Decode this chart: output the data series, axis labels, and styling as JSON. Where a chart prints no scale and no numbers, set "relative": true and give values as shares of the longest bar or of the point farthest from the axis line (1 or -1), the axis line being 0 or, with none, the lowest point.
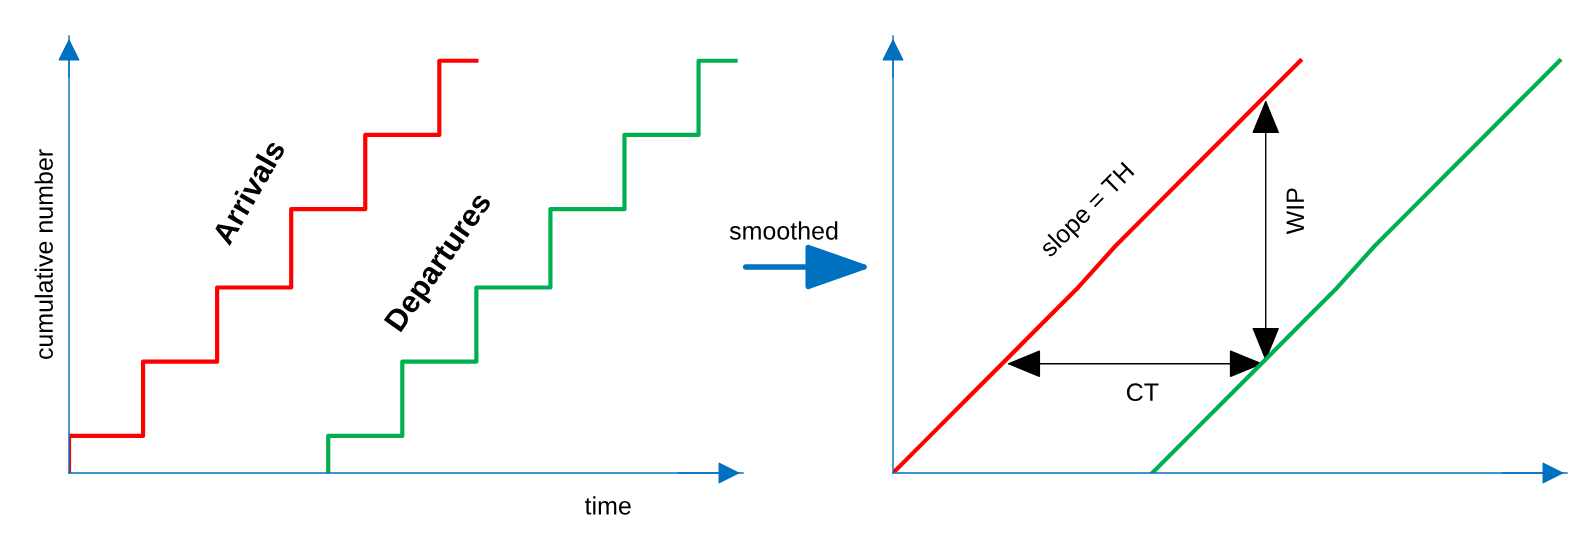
{
  "chart_data": [
    {
      "type": "step",
      "relative": true,
      "xlabel": "time",
      "ylabel": "cumulative number",
      "tick_labels": false,
      "categories": [
        null,
        null,
        null,
        null,
        null,
        null,
        null,
        null,
        null,
        null,
        null,
        null,
        null,
        null,
        null,
        null,
        null,
        null,
        null
      ],
      "series": [
        {
          "color": "#ff0000",
          "values": [
            0,
            0.09,
            0.09,
            0.27,
            0.27,
            0.45,
            0.45,
            0.64,
            0.64,
            0.82,
            0.82,
            1.0,
            null,
            null,
            null,
            null,
            null,
            null,
            null
          ]
        },
        {
          "color": "#00b050",
          "values": [
            null,
            null,
            null,
            null,
            null,
            null,
            null,
            0,
            0.09,
            0.09,
            0.27,
            0.27,
            0.45,
            0.45,
            0.64,
            0.64,
            0.82,
            0.82,
            1.0
          ]
        }
      ],
      "annotations": [
        "Arrivals",
        "Departures"
      ]
    },
    {
      "type": "line",
      "relative": true,
      "tick_labels": false,
      "categories": [
        null,
        null,
        null,
        null,
        null,
        null,
        null,
        null,
        null,
        null,
        null,
        null,
        null,
        null,
        null,
        null,
        null,
        null,
        null
      ],
      "series": [
        {
          "color": "#ff0000",
          "values": [
            0,
            0.09,
            0.18,
            0.27,
            0.36,
            0.45,
            0.55,
            0.64,
            0.73,
            0.82,
            0.91,
            1.0,
            null,
            null,
            null,
            null,
            null,
            null,
            null
          ]
        },
        {
          "color": "#00b050",
          "values": [
            null,
            null,
            null,
            null,
            null,
            null,
            null,
            0,
            0.09,
            0.18,
            0.27,
            0.36,
            0.45,
            0.55,
            0.64,
            0.73,
            0.82,
            0.91,
            1.0
          ]
        }
      ],
      "annotations": [
        "smoothed",
        "slope = TH",
        "WIP",
        "CT"
      ]
    }
  ]
}
